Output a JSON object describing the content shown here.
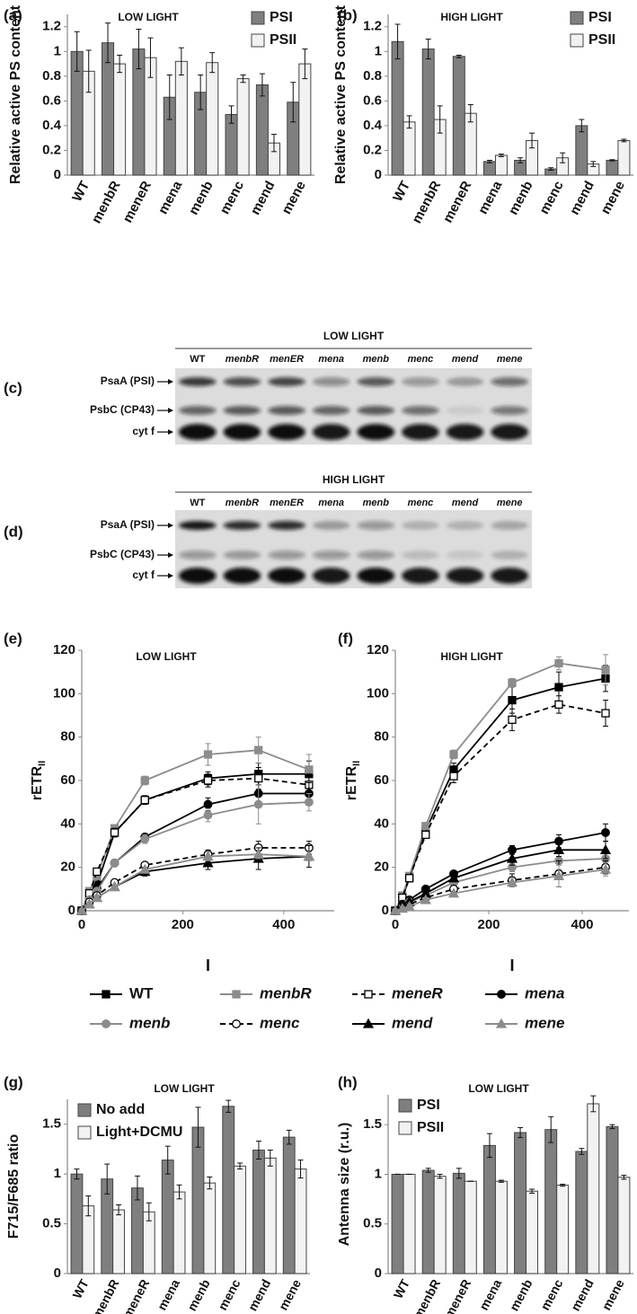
{
  "chart_data": [
    {
      "type": "bar",
      "label": "(a)",
      "title": "LOW LIGHT",
      "ylabel": "Relative active PS content",
      "categories": [
        "WT",
        "menbR",
        "meneR",
        "mena",
        "menb",
        "menc",
        "mend",
        "mene"
      ],
      "series": [
        {
          "name": "PSI",
          "color": "#7f7f7f",
          "values": [
            1.0,
            1.07,
            1.02,
            0.63,
            0.67,
            0.49,
            0.73,
            0.59
          ],
          "errors": [
            0.16,
            0.16,
            0.16,
            0.18,
            0.14,
            0.07,
            0.09,
            0.16
          ]
        },
        {
          "name": "PSII",
          "color": "#f2f2f2",
          "values": [
            0.84,
            0.9,
            0.95,
            0.92,
            0.91,
            0.78,
            0.26,
            0.9
          ],
          "errors": [
            0.17,
            0.07,
            0.16,
            0.11,
            0.08,
            0.03,
            0.07,
            0.12
          ]
        }
      ],
      "ylim": [
        0,
        1.3
      ],
      "yticks": [
        0,
        0.2,
        0.4,
        0.6,
        0.8,
        1,
        1.2
      ],
      "legend": "upper right"
    },
    {
      "type": "bar",
      "label": "(b)",
      "title": "HIGH LIGHT",
      "ylabel": "Relative active PS content",
      "categories": [
        "WT",
        "menbR",
        "meneR",
        "mena",
        "menb",
        "menc",
        "mend",
        "mene"
      ],
      "series": [
        {
          "name": "PSI",
          "color": "#7f7f7f",
          "values": [
            1.08,
            1.02,
            0.96,
            0.11,
            0.12,
            0.05,
            0.4,
            0.12
          ],
          "errors": [
            0.14,
            0.08,
            0.01,
            0.01,
            0.02,
            0.01,
            0.05,
            0.005
          ]
        },
        {
          "name": "PSII",
          "color": "#f2f2f2",
          "values": [
            0.43,
            0.45,
            0.5,
            0.16,
            0.28,
            0.14,
            0.09,
            0.28
          ],
          "errors": [
            0.05,
            0.11,
            0.07,
            0.01,
            0.06,
            0.04,
            0.02,
            0.01
          ]
        }
      ],
      "ylim": [
        0,
        1.3
      ],
      "yticks": [
        0,
        0.2,
        0.4,
        0.6,
        0.8,
        1,
        1.2
      ],
      "legend": "upper right"
    },
    {
      "type": "line",
      "label": "(e)",
      "title": "LOW LIGHT",
      "ylabel": "rETR",
      "ylabel_sub": "II",
      "xlabel": "I",
      "x": [
        0,
        15,
        30,
        65,
        125,
        250,
        350,
        450
      ],
      "series": [
        {
          "values": [
            0,
            7,
            12,
            36,
            51,
            61,
            63,
            63
          ],
          "errors": [
            0,
            1,
            1,
            2,
            2,
            3,
            5,
            6
          ]
        },
        {
          "values": [
            0,
            9,
            16,
            38,
            60,
            72,
            74,
            65
          ],
          "errors": [
            0,
            1,
            1,
            1,
            2,
            5,
            6,
            7
          ]
        },
        {
          "values": [
            0,
            8,
            18,
            36,
            51,
            60,
            61,
            58
          ],
          "errors": [
            0,
            1,
            1,
            2,
            2,
            3,
            5,
            5
          ]
        },
        {
          "values": [
            0,
            5,
            10,
            22,
            34,
            49,
            54,
            54
          ],
          "errors": [
            0,
            1,
            1,
            1,
            1,
            3,
            4,
            5
          ]
        },
        {
          "values": [
            0,
            5,
            9,
            22,
            33,
            44,
            49,
            50
          ],
          "errors": [
            0,
            1,
            1,
            1,
            2,
            3,
            9,
            4
          ]
        },
        {
          "values": [
            0,
            4,
            7,
            13,
            21,
            26,
            29,
            29
          ],
          "errors": [
            0,
            1,
            1,
            1,
            1,
            2,
            3,
            3
          ]
        },
        {
          "values": [
            0,
            3,
            6,
            11,
            18,
            22,
            24,
            25
          ],
          "errors": [
            0,
            1,
            1,
            1,
            2,
            3,
            5,
            5
          ]
        },
        {
          "values": [
            0,
            3,
            6,
            11,
            19,
            25,
            26,
            25
          ],
          "errors": [
            0,
            1,
            1,
            1,
            1,
            2,
            2,
            2
          ]
        }
      ],
      "xlim": [
        0,
        500
      ],
      "xticks": [
        0,
        200,
        400
      ],
      "ylim": [
        0,
        120
      ],
      "yticks": [
        0,
        20,
        40,
        60,
        80,
        100,
        120
      ]
    },
    {
      "type": "line",
      "label": "(f)",
      "title": "HIGH LIGHT",
      "ylabel": "rETR",
      "ylabel_sub": "II",
      "xlabel": "I",
      "x": [
        0,
        15,
        30,
        65,
        125,
        250,
        350,
        450
      ],
      "series": [
        {
          "values": [
            0,
            6,
            15,
            37,
            65,
            97,
            103,
            107
          ],
          "errors": [
            0,
            1,
            1,
            2,
            3,
            6,
            7,
            6
          ]
        },
        {
          "values": [
            0,
            7,
            16,
            39,
            72,
            105,
            114,
            111
          ],
          "errors": [
            0,
            1,
            1,
            1,
            2,
            2,
            3,
            7
          ]
        },
        {
          "values": [
            0,
            6,
            15,
            35,
            62,
            88,
            95,
            91
          ],
          "errors": [
            0,
            1,
            1,
            1,
            3,
            5,
            4,
            6
          ]
        },
        {
          "values": [
            0,
            3,
            5,
            10,
            17,
            28,
            32,
            36
          ],
          "errors": [
            0,
            1,
            1,
            1,
            1,
            2,
            3,
            4
          ]
        },
        {
          "values": [
            0,
            2,
            4,
            7,
            13,
            20,
            23,
            24
          ],
          "errors": [
            0,
            1,
            1,
            1,
            1,
            2,
            4,
            4
          ]
        },
        {
          "values": [
            0,
            2,
            3,
            6,
            10,
            14,
            17,
            20
          ],
          "errors": [
            0,
            1,
            1,
            1,
            1,
            3,
            6,
            3
          ]
        },
        {
          "values": [
            0,
            2,
            4,
            8,
            15,
            24,
            28,
            28
          ],
          "errors": [
            0,
            1,
            1,
            1,
            1,
            3,
            3,
            4
          ]
        },
        {
          "values": [
            0,
            1,
            2,
            5,
            8,
            13,
            16,
            19
          ],
          "errors": [
            0,
            1,
            1,
            1,
            1,
            2,
            5,
            3
          ]
        }
      ],
      "xlim": [
        0,
        500
      ],
      "xticks": [
        0,
        200,
        400
      ],
      "ylim": [
        0,
        120
      ],
      "yticks": [
        0,
        20,
        40,
        60,
        80,
        100,
        120
      ]
    },
    {
      "type": "bar",
      "label": "(g)",
      "title": "LOW LIGHT",
      "ylabel": "F715/F685 ratio",
      "categories": [
        "WT",
        "menbR",
        "meneR",
        "mena",
        "menb",
        "menc",
        "mend",
        "mene"
      ],
      "series": [
        {
          "name": "No add",
          "color": "#7f7f7f",
          "values": [
            1.0,
            0.95,
            0.86,
            1.14,
            1.47,
            1.68,
            1.24,
            1.37
          ],
          "errors": [
            0.05,
            0.15,
            0.12,
            0.14,
            0.2,
            0.06,
            0.09,
            0.07
          ]
        },
        {
          "name": "Light+DCMU",
          "color": "#f2f2f2",
          "values": [
            0.68,
            0.64,
            0.62,
            0.82,
            0.91,
            1.08,
            1.16,
            1.05
          ],
          "errors": [
            0.1,
            0.05,
            0.09,
            0.07,
            0.06,
            0.03,
            0.08,
            0.09
          ]
        }
      ],
      "ylim": [
        0,
        1.75
      ],
      "yticks": [
        0,
        0.5,
        1,
        1.5
      ],
      "legend": "upper left"
    },
    {
      "type": "bar",
      "label": "(h)",
      "title": "LOW LIGHT",
      "ylabel": "Antenna size (r.u.)",
      "categories": [
        "WT",
        "menbR",
        "meneR",
        "mena",
        "menb",
        "menc",
        "mend",
        "mene"
      ],
      "series": [
        {
          "name": "PSI",
          "color": "#7f7f7f",
          "values": [
            1.0,
            1.04,
            1.01,
            1.29,
            1.42,
            1.45,
            1.23,
            1.48
          ],
          "errors": [
            0,
            0.02,
            0.05,
            0.12,
            0.05,
            0.13,
            0.03,
            0.02
          ]
        },
        {
          "name": "PSII",
          "color": "#f2f2f2",
          "values": [
            1.0,
            0.98,
            0.93,
            0.93,
            0.83,
            0.89,
            1.71,
            0.97
          ],
          "errors": [
            0,
            0.02,
            0,
            0.01,
            0.02,
            0.01,
            0.08,
            0.02
          ]
        }
      ],
      "ylim": [
        0,
        1.8
      ],
      "yticks": [
        0,
        0.5,
        1,
        1.5
      ],
      "legend": "upper left"
    }
  ],
  "legend": [
    {
      "name": "WT",
      "color": "#000000",
      "marker": "square",
      "filled": true,
      "dashed": false
    },
    {
      "name": "menbR",
      "color": "#8c8c8c",
      "marker": "square",
      "filled": true,
      "dashed": false
    },
    {
      "name": "meneR",
      "color": "#000000",
      "marker": "square",
      "filled": false,
      "dashed": true
    },
    {
      "name": "mena",
      "color": "#000000",
      "marker": "circle",
      "filled": true,
      "dashed": false
    },
    {
      "name": "menb",
      "color": "#8c8c8c",
      "marker": "circle",
      "filled": true,
      "dashed": false
    },
    {
      "name": "menc",
      "color": "#000000",
      "marker": "circle",
      "filled": false,
      "dashed": true
    },
    {
      "name": "mend",
      "color": "#000000",
      "marker": "triangle",
      "filled": true,
      "dashed": false
    },
    {
      "name": "mene",
      "color": "#8c8c8c",
      "marker": "triangle",
      "filled": true,
      "dashed": false
    }
  ],
  "blots": [
    {
      "label": "(c)",
      "title": "LOW LIGHT",
      "lanes": [
        "WT",
        "menbR",
        "menER",
        "mena",
        "menb",
        "menc",
        "mend",
        "mene"
      ],
      "rows": [
        "PsaA (PSI)",
        "PsbC (CP43)",
        "cyt f"
      ]
    },
    {
      "label": "(d)",
      "title": "HIGH LIGHT",
      "lanes": [
        "WT",
        "menbR",
        "menER",
        "mena",
        "menb",
        "menc",
        "mend",
        "mene"
      ],
      "rows": [
        "PsaA (PSI)",
        "PsbC (CP43)",
        "cyt f"
      ]
    }
  ]
}
